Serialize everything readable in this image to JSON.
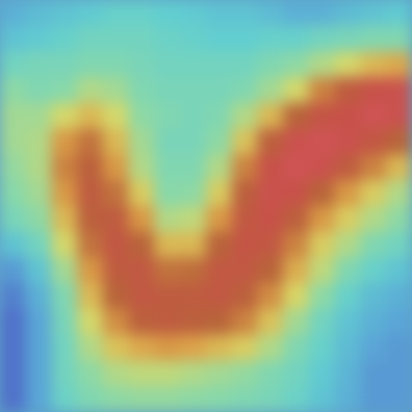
{
  "chart_data": {
    "type": "heatmap",
    "tick_labels": false,
    "color_range": [
      0,
      100
    ],
    "cells": [
      [
        25,
        28,
        30,
        32,
        35,
        35,
        33,
        32,
        30,
        30,
        28,
        25,
        25,
        28,
        30,
        32
      ],
      [
        30,
        32,
        35,
        38,
        38,
        38,
        36,
        35,
        33,
        33,
        35,
        35,
        38,
        40,
        42,
        42
      ],
      [
        38,
        40,
        40,
        42,
        42,
        40,
        38,
        38,
        38,
        38,
        42,
        45,
        50,
        55,
        62,
        65
      ],
      [
        45,
        42,
        44,
        50,
        48,
        42,
        40,
        40,
        40,
        42,
        48,
        55,
        72,
        82,
        88,
        90
      ],
      [
        48,
        48,
        55,
        62,
        55,
        45,
        42,
        40,
        42,
        50,
        62,
        78,
        86,
        88,
        92,
        90
      ],
      [
        48,
        50,
        68,
        75,
        62,
        48,
        40,
        40,
        45,
        60,
        80,
        90,
        92,
        90,
        85,
        78
      ],
      [
        46,
        50,
        72,
        80,
        68,
        50,
        42,
        42,
        50,
        72,
        88,
        92,
        90,
        82,
        72,
        62
      ],
      [
        44,
        48,
        68,
        82,
        75,
        58,
        44,
        45,
        58,
        80,
        90,
        88,
        78,
        68,
        58,
        50
      ],
      [
        40,
        45,
        62,
        80,
        82,
        68,
        50,
        52,
        68,
        84,
        88,
        80,
        68,
        58,
        50,
        45
      ],
      [
        30,
        38,
        55,
        75,
        85,
        78,
        62,
        62,
        78,
        86,
        84,
        72,
        58,
        50,
        42,
        38
      ],
      [
        20,
        30,
        48,
        68,
        82,
        84,
        75,
        76,
        84,
        84,
        78,
        64,
        52,
        42,
        35,
        30
      ],
      [
        15,
        25,
        42,
        62,
        78,
        84,
        82,
        82,
        84,
        80,
        70,
        56,
        45,
        35,
        28,
        25
      ],
      [
        12,
        22,
        40,
        55,
        70,
        80,
        82,
        80,
        78,
        72,
        60,
        48,
        38,
        30,
        25,
        22
      ],
      [
        12,
        22,
        38,
        50,
        60,
        65,
        68,
        66,
        62,
        58,
        50,
        42,
        35,
        28,
        22,
        20
      ],
      [
        12,
        22,
        38,
        45,
        50,
        52,
        52,
        50,
        48,
        46,
        42,
        38,
        32,
        26,
        20,
        20
      ],
      [
        12,
        22,
        36,
        42,
        45,
        46,
        46,
        45,
        44,
        42,
        40,
        36,
        30,
        25,
        20,
        20
      ]
    ]
  }
}
